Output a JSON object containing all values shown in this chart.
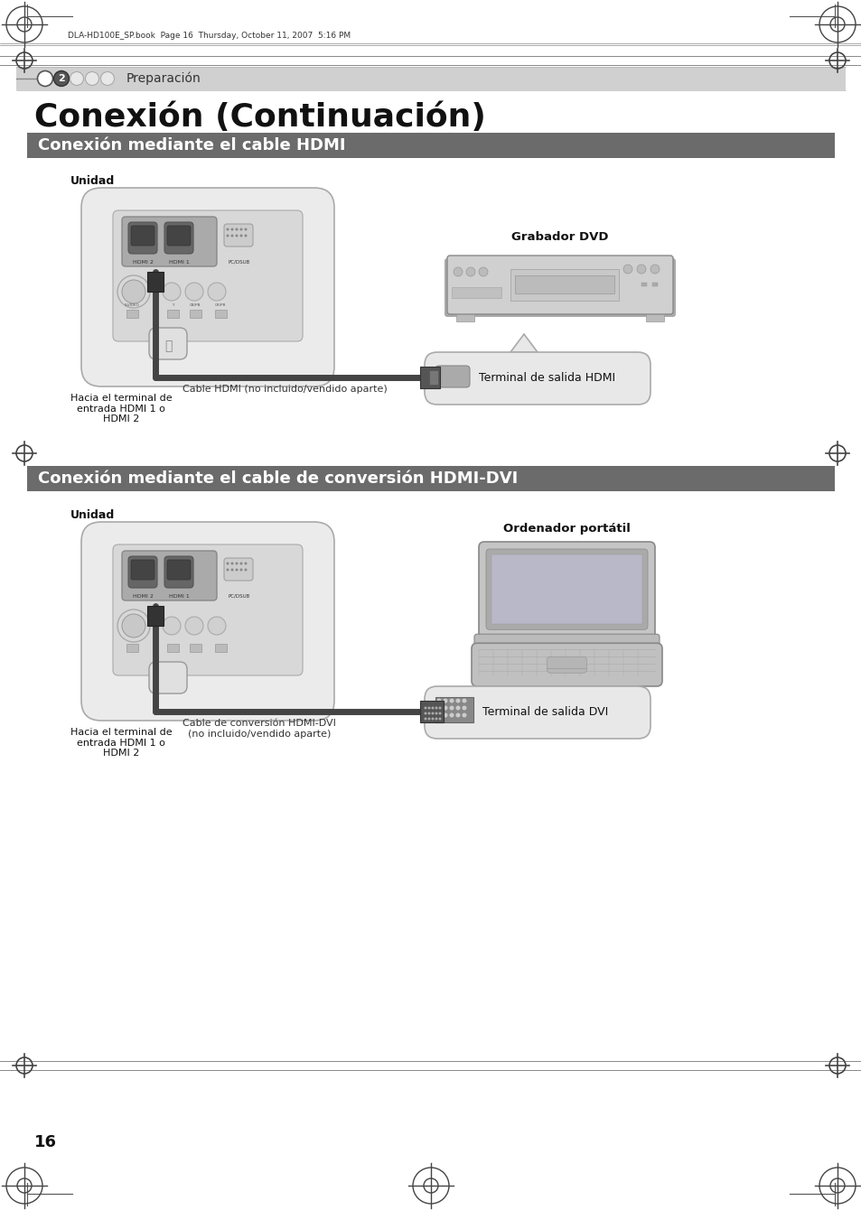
{
  "page_num": "16",
  "header_text": "DLA-HD100E_SP.book  Page 16  Thursday, October 11, 2007  5:16 PM",
  "nav_label": "Preparación",
  "main_title": "Conexión (Continuación)",
  "section1_title": "Conexión mediante el cable HDMI",
  "section1_label_unit": "Unidad",
  "section1_label_dvd": "Grabador DVD",
  "section1_cable_label": "Cable HDMI (no incluido/vendido aparte)",
  "section1_terminal_label": "Terminal de salida HDMI",
  "section1_entry_label": "Hacia el terminal de\nentrada HDMI 1 o\nHDMI 2",
  "section2_title": "Conexión mediante el cable de conversión HDMI-DVI",
  "section2_label_unit": "Unidad",
  "section2_label_laptop": "Ordenador portátil",
  "section2_cable_label": "Cable de conversión HDMI-DVI\n(no incluido/vendido aparte)",
  "section2_terminal_label": "Terminal de salida DVI",
  "section2_entry_label": "Hacia el terminal de\nentrada HDMI 1 o\nHDMI 2",
  "bg_color": "#ffffff",
  "section_bar_color": "#6b6b6b",
  "section_bar_text_color": "#ffffff"
}
